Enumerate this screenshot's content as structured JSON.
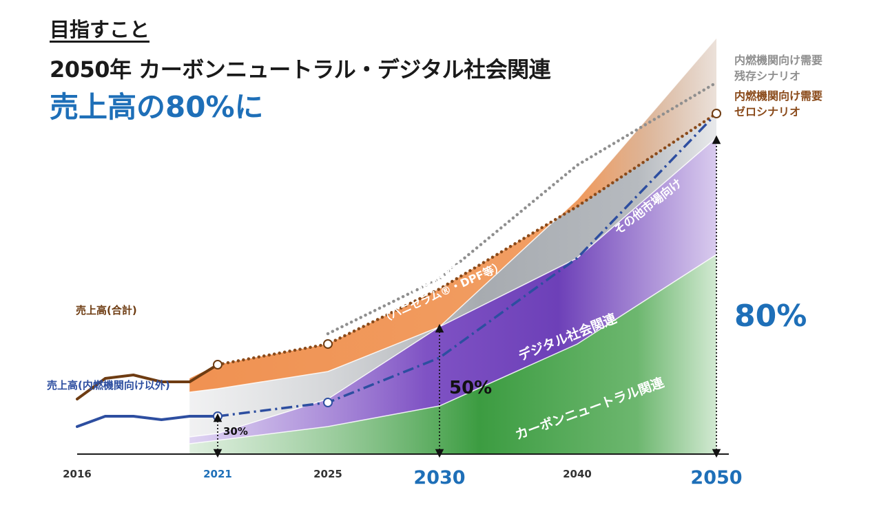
{
  "page": {
    "heading": "目指すこと",
    "title": "2050年 カーボンニュートラル・デジタル社会関連",
    "subtitle": "売上高の80%に"
  },
  "chart_data": {
    "type": "area",
    "x_ticks": [
      {
        "label": "2016",
        "value": 2016,
        "highlight": "none"
      },
      {
        "label": "2021",
        "value": 2021,
        "highlight": "small"
      },
      {
        "label": "2025",
        "value": 2025,
        "highlight": "none"
      },
      {
        "label": "2030",
        "value": 2030,
        "highlight": "large"
      },
      {
        "label": "2040",
        "value": 2040,
        "highlight": "none"
      },
      {
        "label": "2050",
        "value": 2050,
        "highlight": "large"
      }
    ],
    "stacked_areas": [
      {
        "name": "カーボンニュートラル関連",
        "color": "#3a9a3f",
        "values": [
          [
            2020,
            3
          ],
          [
            2021,
            4
          ],
          [
            2025,
            8
          ],
          [
            2030,
            14
          ],
          [
            2040,
            32
          ],
          [
            2050,
            58
          ]
        ]
      },
      {
        "name": "デジタル社会関連",
        "color": "#7a4fc0",
        "values": [
          [
            2020,
            5
          ],
          [
            2021,
            6
          ],
          [
            2025,
            16
          ],
          [
            2030,
            37
          ],
          [
            2040,
            57
          ],
          [
            2050,
            92
          ]
        ]
      },
      {
        "name": "その他市場向け",
        "color": "#8f949a",
        "values": [
          [
            2020,
            18
          ],
          [
            2021,
            19
          ],
          [
            2025,
            24
          ],
          [
            2030,
            37
          ],
          [
            2040,
            74
          ],
          [
            2050,
            121
          ]
        ]
      },
      {
        "name": "内燃機関向け",
        "sublabel": "（ハニセラム®・DPF等）",
        "color": "#ef8c49",
        "values": [
          [
            2020,
            18
          ],
          [
            2021,
            19
          ],
          [
            2025,
            24
          ],
          [
            2030,
            37
          ],
          [
            2040,
            74
          ],
          [
            2050,
            121
          ]
        ]
      }
    ],
    "lines": [
      {
        "name": "売上高(合計)",
        "color": "#6e3c12",
        "style": "solid",
        "values": [
          [
            2016,
            16
          ],
          [
            2017,
            22
          ],
          [
            2018,
            23
          ],
          [
            2019,
            21
          ],
          [
            2020,
            21
          ],
          [
            2021,
            26
          ]
        ]
      },
      {
        "name": "内燃機関向け需要 ゼロシナリオ",
        "color": "#8a4a1a",
        "style": "dotted",
        "values": [
          [
            2021,
            26
          ],
          [
            2025,
            32
          ],
          [
            2030,
            48
          ],
          [
            2040,
            72
          ],
          [
            2050,
            99
          ]
        ]
      },
      {
        "name": "内燃機関向け需要 残存シナリオ",
        "color": "#8f8f8f",
        "style": "dotted",
        "values": [
          [
            2025,
            35
          ],
          [
            2030,
            51
          ],
          [
            2040,
            84
          ],
          [
            2050,
            108
          ]
        ]
      },
      {
        "name": "売上高(内燃機関向け以外)",
        "color": "#2d4ea0",
        "style": "solid",
        "values": [
          [
            2016,
            8
          ],
          [
            2017,
            11
          ],
          [
            2018,
            11
          ],
          [
            2019,
            10
          ],
          [
            2020,
            11
          ],
          [
            2021,
            11
          ]
        ]
      },
      {
        "name": "売上高(内燃機関向け以外) 2021-2050",
        "color": "#2d4ea0",
        "style": "dashdot",
        "values": [
          [
            2021,
            11
          ],
          [
            2025,
            15
          ],
          [
            2030,
            28
          ],
          [
            2040,
            57
          ],
          [
            2050,
            99
          ]
        ]
      }
    ],
    "markers": [
      {
        "year": 2021,
        "value": 26
      },
      {
        "year": 2025,
        "value": 32
      },
      {
        "year": 2050,
        "value": 99
      },
      {
        "year": 2021,
        "value": 11
      },
      {
        "year": 2025,
        "value": 15
      }
    ],
    "series_labels": {
      "total": "売上高(合計)",
      "non_ice": "売上高(内燃機関向け以外)",
      "remain_1": "内燃機関向け需要",
      "remain_2": "残存シナリオ",
      "zero_1": "内燃機関向け需要",
      "zero_2": "ゼロシナリオ"
    },
    "shares": [
      {
        "label": "30%",
        "year": 2021,
        "value": 11,
        "size": "small"
      },
      {
        "label": "50%",
        "year": 2030,
        "value": 37,
        "size": "medium"
      },
      {
        "label": "80%",
        "year": 2050,
        "value": 92,
        "size": "large"
      }
    ],
    "colors": {
      "accent_blue": "#1e6fb8",
      "total_brown": "#6e3c12",
      "zero_brown": "#8a4a1a",
      "gray_dots": "#8f8f8f",
      "nonice_blue": "#2d4ea0",
      "orange": "#ef8c49",
      "purple": "#7a4fc0",
      "green": "#3a9a3f",
      "gray_area": "#8f949a"
    }
  }
}
